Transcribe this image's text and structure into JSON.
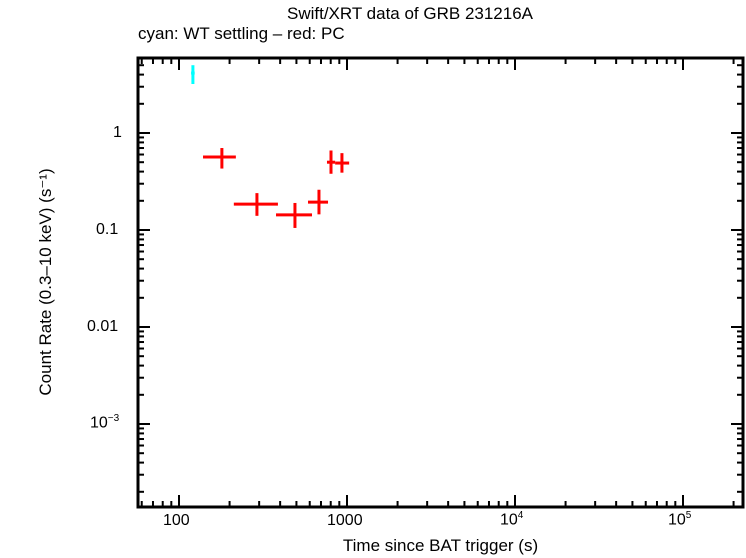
{
  "chart_data": {
    "type": "scatter",
    "title": "Swift/XRT data of GRB 231216A",
    "subtitle": "cyan: WT settling – red: PC",
    "xlabel": "Time since BAT trigger (s)",
    "ylabel": "Count Rate (0.3–10 keV) (s⁻¹)",
    "xscale": "log",
    "yscale": "log",
    "xlim": [
      57,
      230000
    ],
    "ylim": [
      0.000137,
      5.9
    ],
    "x_ticks": [
      "100",
      "1000",
      "10^4",
      "10^5"
    ],
    "y_ticks": [
      "1",
      "0.1",
      "0.01",
      "10^-3"
    ],
    "grid": false,
    "series": [
      {
        "name": "WT settling",
        "color": "#00ffff",
        "points": [
          {
            "x": 121,
            "xerr": [
              118,
              124
            ],
            "y": 4.15,
            "yerr": [
              3.2,
              5.0
            ]
          }
        ]
      },
      {
        "name": "PC",
        "color": "#ff0000",
        "points": [
          {
            "x": 180,
            "xerr": [
              139,
              218
            ],
            "y": 0.566,
            "yerr": [
              0.43,
              0.7
            ]
          },
          {
            "x": 291,
            "xerr": [
              212,
              388
            ],
            "y": 0.185,
            "yerr": [
              0.14,
              0.24
            ]
          },
          {
            "x": 490,
            "xerr": [
              378,
              619
            ],
            "y": 0.143,
            "yerr": [
              0.105,
              0.19
            ]
          },
          {
            "x": 681,
            "xerr": [
              586,
              771
            ],
            "y": 0.194,
            "yerr": [
              0.145,
              0.26
            ]
          },
          {
            "x": 803,
            "xerr": [
              760,
              850
            ],
            "y": 0.5,
            "yerr": [
              0.38,
              0.66
            ]
          },
          {
            "x": 933,
            "xerr": [
              850,
              1030
            ],
            "y": 0.49,
            "yerr": [
              0.39,
              0.62
            ]
          }
        ]
      }
    ]
  },
  "labels": {
    "title": "Swift/XRT data of GRB 231216A",
    "subtitle": "cyan: WT settling – red: PC",
    "xlabel": "Time since BAT trigger (s)",
    "ylabel": "Count Rate (0.3–10 keV) (s⁻¹)",
    "xtick_100": "100",
    "xtick_1000": "1000",
    "xtick_1e4_base": "10",
    "xtick_1e4_exp": "4",
    "xtick_1e5_base": "10",
    "xtick_1e5_exp": "5",
    "ytick_1": "1",
    "ytick_01": "0.1",
    "ytick_001": "0.01",
    "ytick_1e3_base": "10",
    "ytick_1e3_exp": "−3"
  }
}
